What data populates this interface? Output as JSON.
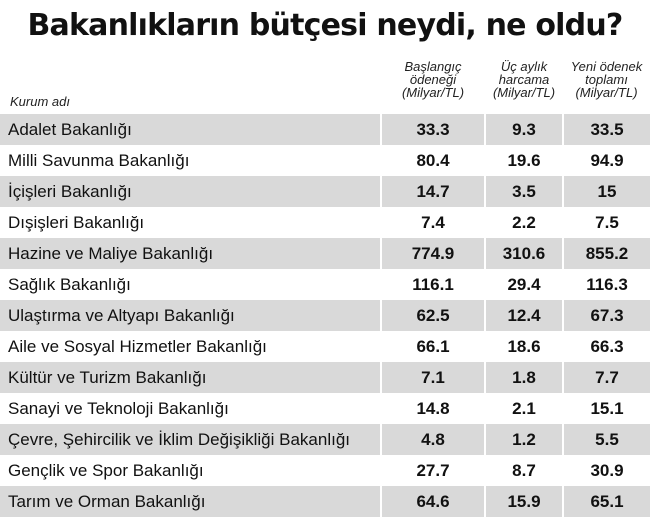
{
  "title": "Bakanlıkların bütçesi neydi, ne oldu?",
  "columns": {
    "org": "Kurum adı",
    "col1": [
      "Başlangıç",
      "ödeneği",
      "(Milyar/TL)"
    ],
    "col2": [
      "Üç aylık",
      "harcama",
      "(Milyar/TL)"
    ],
    "col3": [
      "Yeni ödenek",
      "toplamı",
      "(Milyar/TL)"
    ]
  },
  "colors": {
    "row_shade": "#d9d9d9",
    "text": "#111111"
  },
  "chart_data": {
    "type": "table",
    "title": "Bakanlıkların bütçesi neydi, ne oldu?",
    "headers": [
      "Kurum adı",
      "Başlangıç ödeneği (Milyar/TL)",
      "Üç aylık harcama (Milyar/TL)",
      "Yeni ödenek toplamı (Milyar/TL)"
    ],
    "rows": [
      [
        "Adalet Bakanlığı",
        "33.3",
        "9.3",
        "33.5"
      ],
      [
        "Milli Savunma Bakanlığı",
        "80.4",
        "19.6",
        "94.9"
      ],
      [
        "İçişleri Bakanlığı",
        "14.7",
        "3.5",
        "15"
      ],
      [
        "Dışişleri Bakanlığı",
        "7.4",
        "2.2",
        "7.5"
      ],
      [
        "Hazine ve Maliye Bakanlığı",
        "774.9",
        "310.6",
        "855.2"
      ],
      [
        "Sağlık Bakanlığı",
        "116.1",
        "29.4",
        "116.3"
      ],
      [
        "Ulaştırma ve Altyapı Bakanlığı",
        "62.5",
        "12.4",
        "67.3"
      ],
      [
        "Aile ve Sosyal Hizmetler Bakanlığı",
        "66.1",
        "18.6",
        "66.3"
      ],
      [
        "Kültür ve Turizm Bakanlığı",
        "7.1",
        "1.8",
        "7.7"
      ],
      [
        "Sanayi ve Teknoloji Bakanlığı",
        "14.8",
        "2.1",
        "15.1"
      ],
      [
        "Çevre, Şehircilik ve İklim Değişikliği Bakanlığı",
        "4.8",
        "1.2",
        "5.5"
      ],
      [
        "Gençlik ve Spor Bakanlığı",
        "27.7",
        "8.7",
        "30.9"
      ],
      [
        "Tarım ve Orman Bakanlığı",
        "64.6",
        "15.9",
        "65.1"
      ]
    ]
  }
}
